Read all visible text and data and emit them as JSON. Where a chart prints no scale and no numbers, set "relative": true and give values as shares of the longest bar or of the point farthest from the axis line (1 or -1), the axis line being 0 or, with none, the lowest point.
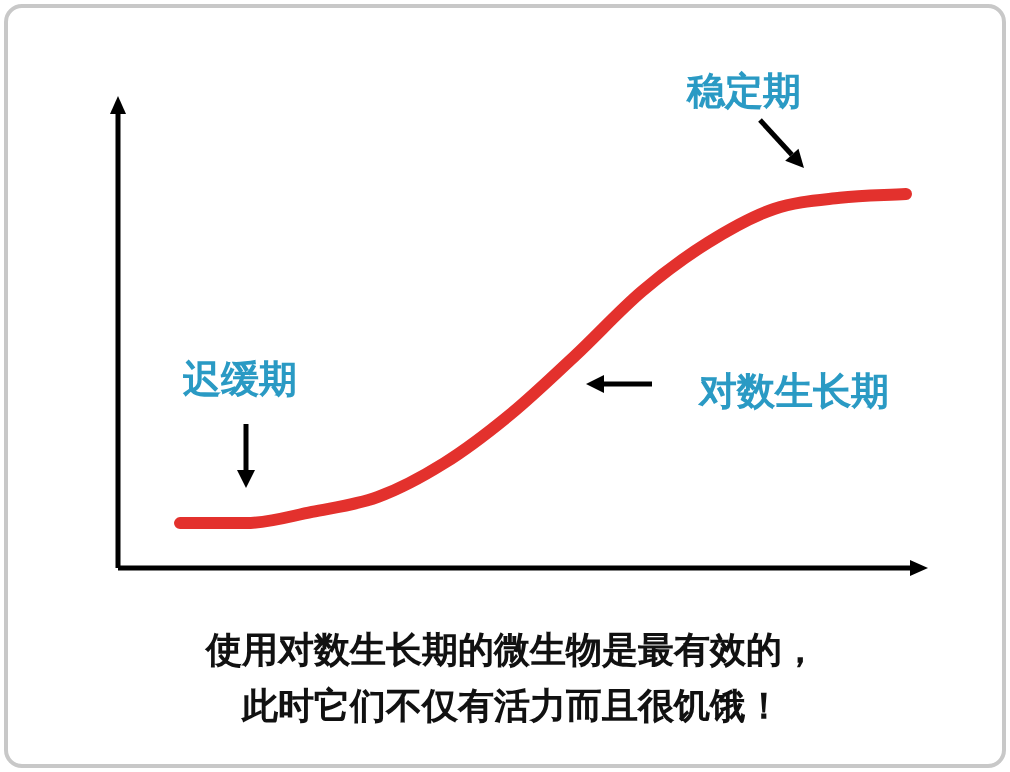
{
  "chart_data": {
    "type": "line",
    "relative": true,
    "categories": [
      null,
      null,
      null,
      null,
      null,
      null,
      null,
      null,
      null,
      null,
      null,
      null
    ],
    "series": [
      {
        "color": "#e3312d",
        "values": [
          0.12,
          0.12,
          0.15,
          0.19,
          0.28,
          0.41,
          0.57,
          0.74,
          0.87,
          0.96,
          0.99,
          1.0
        ]
      }
    ],
    "annotations": [
      "稳定期",
      "迟缓期",
      "对数生长期",
      "使用对数生长期的微生物是最有效的，",
      "此时它们不仅有活力而且很饥饿！"
    ],
    "marker": "none",
    "line_style": "solid",
    "grid": false
  }
}
